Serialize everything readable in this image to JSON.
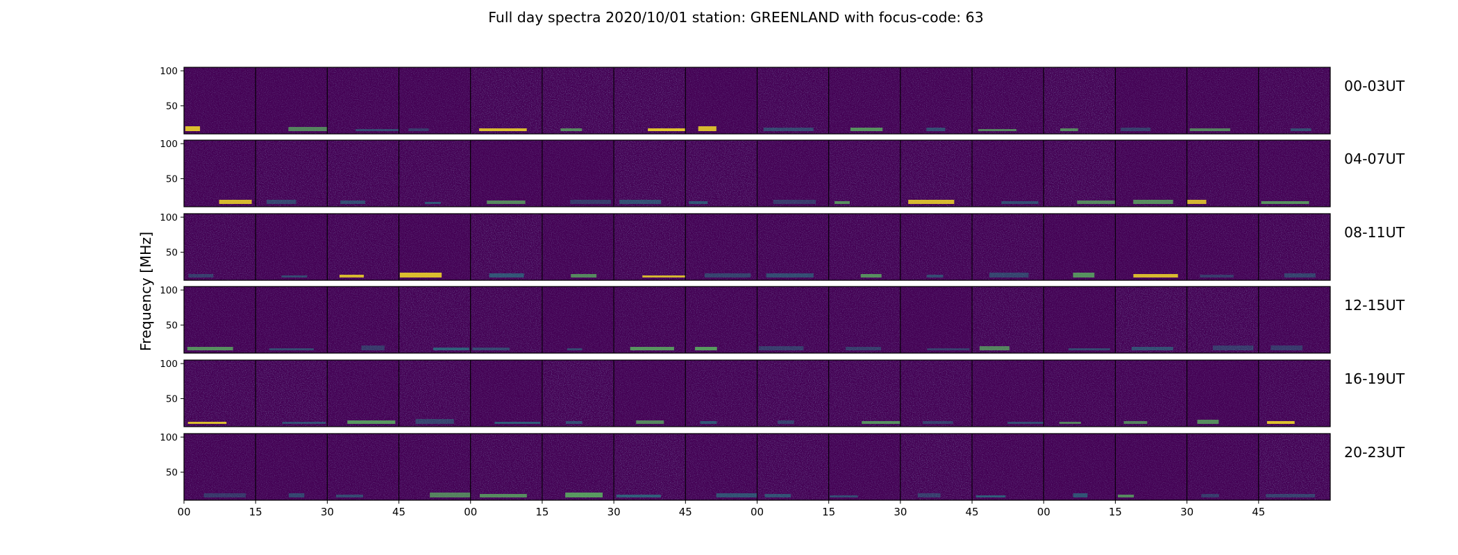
{
  "chart_data": {
    "type": "heatmap",
    "title": "Full day spectra 2020/10/01 station: GREENLAND with focus-code: 63",
    "ylabel": "Frequency [MHz]",
    "ylim_mhz": [
      10,
      105
    ],
    "y_ticks": [
      "100",
      "50"
    ],
    "colormap": "viridis",
    "rows": [
      {
        "label": "00-03UT",
        "hours": [
          0,
          1,
          2,
          3
        ]
      },
      {
        "label": "04-07UT",
        "hours": [
          4,
          5,
          6,
          7
        ]
      },
      {
        "label": "08-11UT",
        "hours": [
          8,
          9,
          10,
          11
        ]
      },
      {
        "label": "12-15UT",
        "hours": [
          12,
          13,
          14,
          15
        ]
      },
      {
        "label": "16-19UT",
        "hours": [
          16,
          17,
          18,
          19
        ]
      },
      {
        "label": "20-23UT",
        "hours": [
          20,
          21,
          22,
          23
        ]
      }
    ],
    "x_ticks": [
      "00",
      "15",
      "30",
      "45",
      "00",
      "15",
      "30",
      "45",
      "00",
      "15",
      "30",
      "45",
      "00",
      "15",
      "30",
      "45"
    ],
    "panels_per_row": 16,
    "panel_minutes": 15
  },
  "colors": {
    "background": "#440154",
    "speckle_light": "#3b528b",
    "rfi_mid": "#21918c",
    "rfi_high": "#5ec962",
    "rfi_peak": "#fde725"
  }
}
